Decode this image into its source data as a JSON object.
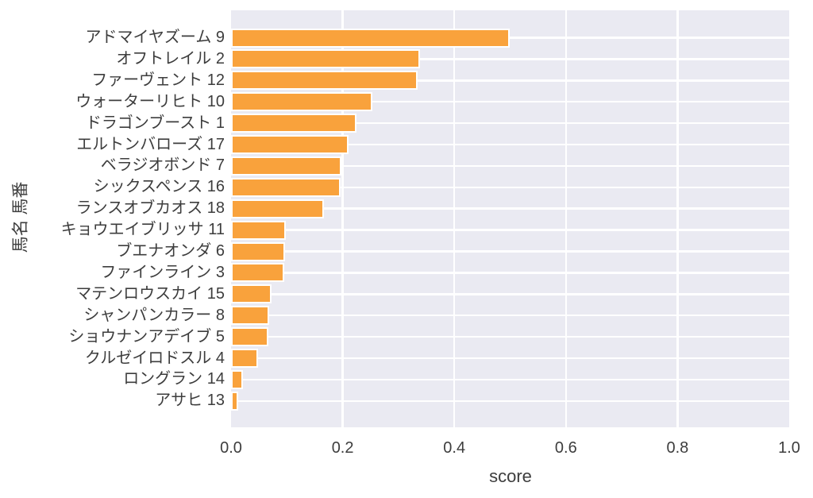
{
  "chart_data": {
    "type": "bar",
    "orientation": "horizontal",
    "title": "",
    "xlabel": "score",
    "ylabel": "馬名 馬番",
    "xlim": [
      0.0,
      1.0
    ],
    "xticks": [
      0.0,
      0.2,
      0.4,
      0.6,
      0.8,
      1.0
    ],
    "xtick_labels": [
      "0.0",
      "0.2",
      "0.4",
      "0.6",
      "0.8",
      "1.0"
    ],
    "grid": true,
    "legend": false,
    "categories": [
      "アドマイヤズーム 9",
      "オフトレイル 2",
      "ファーヴェント 12",
      "ウォーターリヒト 10",
      "ドラゴンブースト 1",
      "エルトンバローズ 17",
      "ベラジオボンド 7",
      "シックスペンス 16",
      "ランスオブカオス 18",
      "キョウエイブリッサ 11",
      "ブエナオンダ 6",
      "ファインライン 3",
      "マテンロウスカイ 15",
      "シャンパンカラー 8",
      "ショウナンアデイブ 5",
      "クルゼイロドスル 4",
      "ロングラン 14",
      "アサヒ 13"
    ],
    "values": [
      0.496,
      0.336,
      0.331,
      0.25,
      0.222,
      0.208,
      0.195,
      0.193,
      0.164,
      0.096,
      0.094,
      0.092,
      0.069,
      0.066,
      0.064,
      0.045,
      0.018,
      0.01
    ],
    "colors": {
      "bar_fill": "#f9a23c",
      "bar_edge": "#ffffff",
      "plot_background": "#eaeaf2",
      "grid_line": "#ffffff",
      "text": "#3d3d3d"
    }
  }
}
